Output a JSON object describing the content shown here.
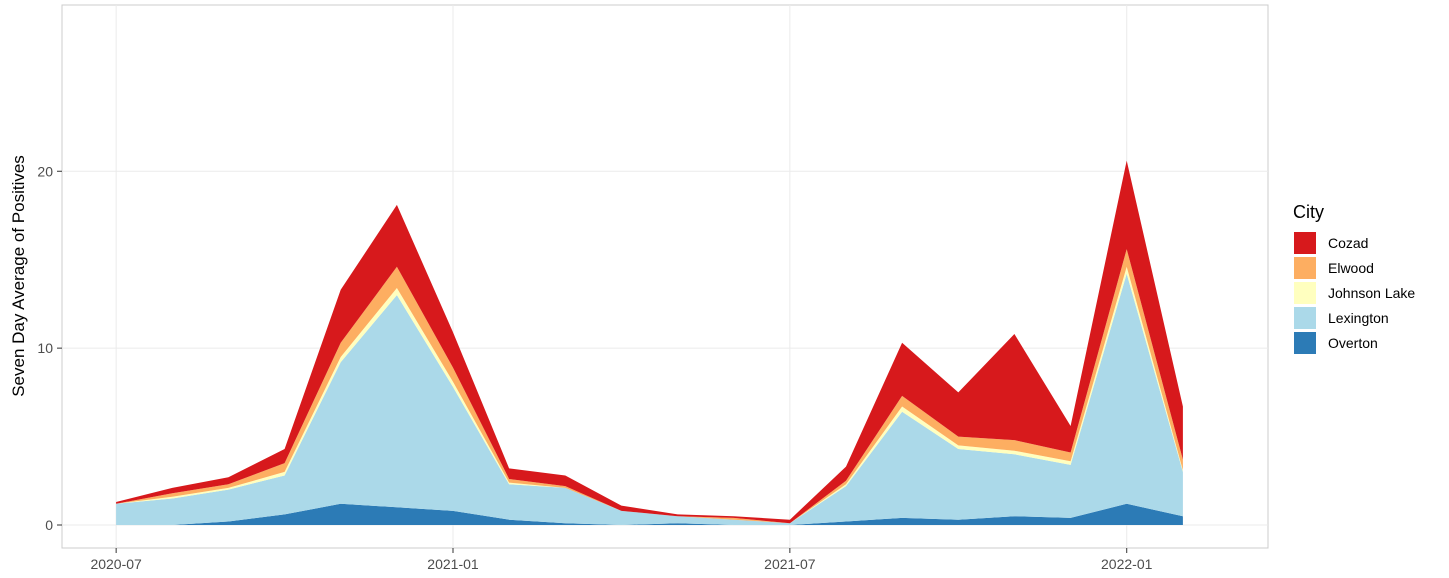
{
  "chart_data": {
    "type": "stacked-area",
    "y_label": "Seven Day Average of Positives",
    "legend_title": "City",
    "legend": "right",
    "grid": true,
    "x": [
      "2020-07",
      "2020-08",
      "2020-09",
      "2020-10",
      "2020-11",
      "2020-12",
      "2021-01",
      "2021-02",
      "2021-03",
      "2021-04",
      "2021-05",
      "2021-06",
      "2021-07",
      "2021-08",
      "2021-09",
      "2021-10",
      "2021-11",
      "2021-12",
      "2022-01",
      "2022-02"
    ],
    "xlim": [
      "2020-06",
      "2022-03"
    ],
    "xticks": [
      "2020-07",
      "2021-01",
      "2021-07",
      "2022-01"
    ],
    "ylim": [
      -1.3,
      29.4
    ],
    "yticks": [
      0,
      10,
      20
    ],
    "series": [
      {
        "name": "Cozad",
        "color": "#d7191c",
        "values": [
          0.1,
          0.3,
          0.4,
          0.8,
          3,
          3.5,
          2,
          0.6,
          0.6,
          0.3,
          0.1,
          0.1,
          0.2,
          0.8,
          3,
          2.5,
          6,
          1.5,
          5,
          3
        ]
      },
      {
        "name": "Elwood",
        "color": "#fdae61",
        "values": [
          0,
          0.2,
          0.2,
          0.5,
          0.8,
          1.2,
          0.8,
          0.2,
          0.1,
          0,
          0,
          0.1,
          0,
          0.2,
          0.6,
          0.5,
          0.6,
          0.5,
          1,
          0.6
        ]
      },
      {
        "name": "Johnson Lake",
        "color": "#ffffbf",
        "values": [
          0,
          0.1,
          0.1,
          0.2,
          0.3,
          0.4,
          0.3,
          0.1,
          0,
          0,
          0,
          0,
          0,
          0.1,
          0.3,
          0.2,
          0.2,
          0.2,
          0.4,
          0.1
        ]
      },
      {
        "name": "Lexington",
        "color": "#abd9e9",
        "values": [
          1.2,
          1.5,
          1.8,
          2.2,
          8,
          12,
          7,
          2,
          2,
          0.8,
          0.4,
          0.3,
          0.1,
          2,
          6,
          4,
          3.5,
          3,
          13,
          2.5
        ]
      },
      {
        "name": "Overton",
        "color": "#2c7bb6",
        "values": [
          0,
          0,
          0.2,
          0.6,
          1.2,
          1,
          0.8,
          0.3,
          0.1,
          0,
          0.1,
          0,
          0,
          0.2,
          0.4,
          0.3,
          0.5,
          0.4,
          1.2,
          0.5
        ]
      }
    ]
  }
}
